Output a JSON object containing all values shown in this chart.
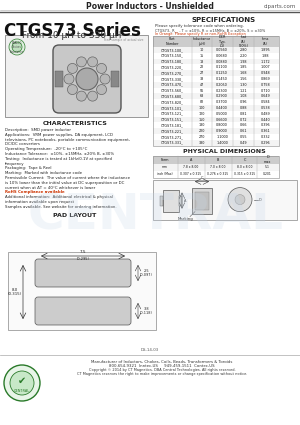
{
  "title_header": "Power Inductors - Unshielded",
  "website": "ciparts.com",
  "series_title": "CTGS73 Series",
  "series_subtitle": "From 10 μH to 330 μH",
  "characteristics_title": "CHARACTERISTICS",
  "rohs_text": "RoHS Compliance available",
  "specifications_title": "SPECIFICATIONS",
  "spec_note1": "Please specify tolerance code when ordering.",
  "spec_note2": "CTGS73-_R__ - T = ±10%, R = ±15MHz, B = ±20%, S = ±30%",
  "spec_note3": "In Orange: Please specify R or non-RoHS Exception",
  "spec_columns": [
    "Part\nNumber",
    "Inductance\n(μH)",
    "DCR\nTyp.\n(Ω)",
    "Isat\n(A)\n(20%)",
    "Irms\n(A)"
  ],
  "spec_data": [
    [
      "CTGS73-100_",
      "10",
      "0.0560",
      "2.80",
      "1.895"
    ],
    [
      "CTGS73-150_",
      "15",
      "0.0680",
      "2.20",
      "1.88"
    ],
    [
      "CTGS73-180_",
      "18",
      "0.0880",
      "1.98",
      "1.172"
    ],
    [
      "CTGS73-220_",
      "22",
      "0.1100",
      "1.85",
      "1.007"
    ],
    [
      "CTGS73-270_",
      "27",
      "0.1250",
      "1.68",
      "0.948"
    ],
    [
      "CTGS73-330_",
      "33",
      "0.1450",
      "1.56",
      "0.869"
    ],
    [
      "CTGS73-470_",
      "47",
      "0.2050",
      "1.30",
      "0.758"
    ],
    [
      "CTGS73-560_",
      "56",
      "0.2300",
      "1.21",
      "0.710"
    ],
    [
      "CTGS73-680_",
      "68",
      "0.2900",
      "1.08",
      "0.649"
    ],
    [
      "CTGS73-820_",
      "82",
      "0.3700",
      "0.96",
      "0.584"
    ],
    [
      "CTGS73-101_",
      "100",
      "0.4400",
      "0.88",
      "0.538"
    ],
    [
      "CTGS73-121_",
      "120",
      "0.5000",
      "0.81",
      "0.489"
    ],
    [
      "CTGS73-151_",
      "150",
      "0.6600",
      "0.72",
      "0.440"
    ],
    [
      "CTGS73-181_",
      "180",
      "0.8000",
      "0.66",
      "0.396"
    ],
    [
      "CTGS73-221_",
      "220",
      "0.9000",
      "0.61",
      "0.361"
    ],
    [
      "CTGS73-271_",
      "270",
      "1.1000",
      "0.55",
      "0.332"
    ],
    [
      "CTGS73-331_",
      "330",
      "1.4000",
      "0.49",
      "0.296"
    ]
  ],
  "phys_dim_title": "PHYSICAL DIMENSIONS",
  "phys_dim_cols": [
    "Form",
    "A",
    "B",
    "C",
    "D\nmax"
  ],
  "phys_dim_data": [
    [
      "mm",
      "7.8 x 8.00",
      "7.0 x 8.00",
      "8.0 x 8.00",
      "5.1"
    ],
    [
      "inch (Max)",
      "0.307 x 0.315",
      "0.276 x 0.315",
      "0.315 x 0.315",
      "0.201"
    ]
  ],
  "pad_layout_title": "PAD LAYOUT",
  "footer_note": "DS-14-03",
  "footer_manufacturer": "Manufacturer of Inductors, Chokes, Coils, Beads, Transformers & Toroids",
  "footer_contact1": "800-654-9321  Inntec-US     949-459-1511  Contec-US",
  "footer_copyright": "Copyright © 2014 by CT Magnetics. DBA Central Technologies. All rights reserved.",
  "footer_disclaimer": "CT Magnetics reserves the right to make improvements or change specification without notice.",
  "char_lines": [
    "Description:  SMD power inductor",
    "Applications:  VRM power supplies, DA equipment, LCD",
    "televisions, PC notebooks, portable communication equipment,",
    "DC/DC converters",
    "Operating Temperature:  -20°C to +105°C",
    "Inductance Tolerance:  ±10%, ±15MHz, ±20% B, ±30%",
    "Testing:  Inductance is tested at 1kHz/0.1V at specified",
    "frequency",
    "Packaging:  Tape & Reel",
    "Marking:  Marked with inductance code",
    "Permissible Current:  The value of current where the inductance",
    "is 10% lower than the initial value at DC superposition or DC",
    "current when at ΔT = 40°C whichever is lower"
  ],
  "char_lines2": [
    "Additional information:  Additional electrical & physical",
    "information available upon request",
    "Samples available. See website for ordering information."
  ],
  "bg_color": "#ffffff",
  "orange_color": "#cc3300"
}
